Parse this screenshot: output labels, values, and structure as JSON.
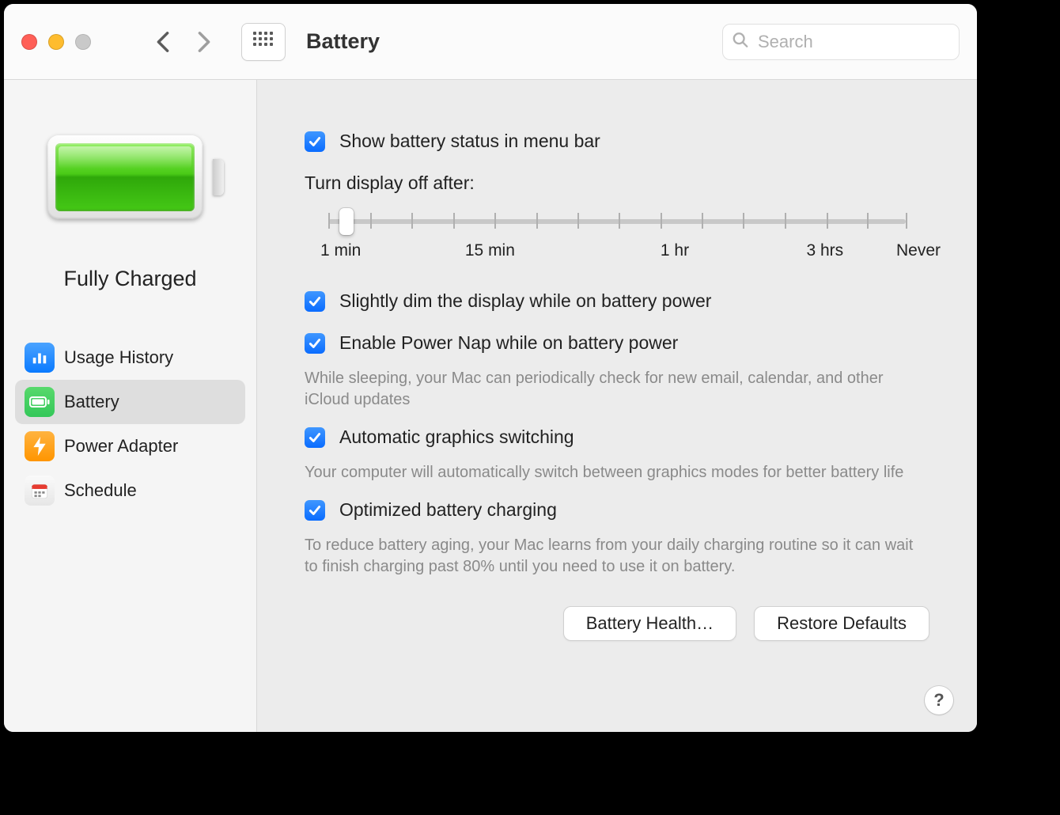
{
  "window": {
    "title": "Battery",
    "search_placeholder": "Search"
  },
  "sidebar": {
    "battery_status": "Fully Charged",
    "items": [
      {
        "label": "Usage History",
        "icon": "usage"
      },
      {
        "label": "Battery",
        "icon": "battery",
        "active": true
      },
      {
        "label": "Power Adapter",
        "icon": "power"
      },
      {
        "label": "Schedule",
        "icon": "schedule"
      }
    ]
  },
  "settings": {
    "show_status": {
      "label": "Show battery status in menu bar",
      "checked": true
    },
    "slider": {
      "label": "Turn display off after:",
      "ticks": [
        0,
        7.2,
        14.4,
        21.6,
        28.7,
        36.0,
        43.2,
        50.3,
        57.5,
        64.7,
        71.8,
        79.1,
        86.3,
        93.3,
        100
      ],
      "thumb_position_pct": 3.2,
      "marks": [
        {
          "label": "1 min",
          "pos_pct": 0
        },
        {
          "label": "15 min",
          "pos_pct": 28
        },
        {
          "label": "1 hr",
          "pos_pct": 60
        },
        {
          "label": "3 hrs",
          "pos_pct": 86
        },
        {
          "label": "Never",
          "pos_pct": 100
        }
      ]
    },
    "dim_display": {
      "label": "Slightly dim the display while on battery power",
      "checked": true
    },
    "power_nap": {
      "label": "Enable Power Nap while on battery power",
      "checked": true,
      "help": "While sleeping, your Mac can periodically check for new email, calendar, and other iCloud updates"
    },
    "graphics": {
      "label": "Automatic graphics switching",
      "checked": true,
      "help": "Your computer will automatically switch between graphics modes for better battery life"
    },
    "optimized": {
      "label": "Optimized battery charging",
      "checked": true,
      "help": "To reduce battery aging, your Mac learns from your daily charging routine so it can wait to finish charging past 80% until you need to use it on battery."
    }
  },
  "buttons": {
    "health": "Battery Health…",
    "restore": "Restore Defaults"
  },
  "colors": {
    "accent": "#0a6cff",
    "bg": "#ececec",
    "sidebar_bg": "#f5f5f5",
    "help_text": "#8a8a8a"
  }
}
